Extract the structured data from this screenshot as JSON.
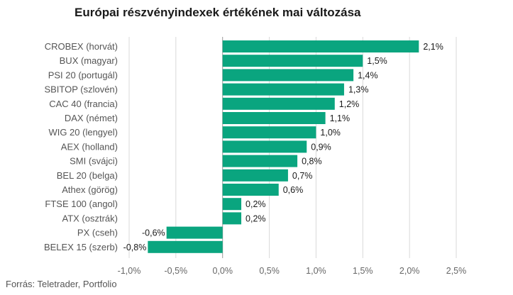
{
  "title": "Európai részvényindexek értékének mai változása",
  "source": "Forrás: Teletrader, Portfolio",
  "chart_data": {
    "type": "bar",
    "orientation": "horizontal",
    "title": "Európai részvényindexek értékének mai változása",
    "categories": [
      "CROBEX (horvát)",
      "BUX (magyar)",
      "PSI 20 (portugál)",
      "SBITOP (szlovén)",
      "CAC 40 (francia)",
      "DAX (német)",
      "WIG 20 (lengyel)",
      "AEX (holland)",
      "SMI (svájci)",
      "BEL 20 (belga)",
      "Athex (görög)",
      "FTSE 100 (angol)",
      "ATX (osztrák)",
      "PX (cseh)",
      "BELEX 15 (szerb)"
    ],
    "values": [
      2.1,
      1.5,
      1.4,
      1.3,
      1.2,
      1.1,
      1.0,
      0.9,
      0.8,
      0.7,
      0.6,
      0.2,
      0.2,
      -0.6,
      -0.8
    ],
    "value_labels": [
      "2,1%",
      "1,5%",
      "1,4%",
      "1,3%",
      "1,2%",
      "1,1%",
      "1,0%",
      "0,9%",
      "0,8%",
      "0,7%",
      "0,6%",
      "0,2%",
      "0,2%",
      "-0,6%",
      "-0,8%"
    ],
    "xlim": [
      -1.0,
      2.5
    ],
    "x_ticks": [
      -1.0,
      -0.5,
      0.0,
      0.5,
      1.0,
      1.5,
      2.0,
      2.5
    ],
    "x_tick_labels": [
      "-1,0%",
      "-0,5%",
      "0,0%",
      "0,5%",
      "1,0%",
      "1,5%",
      "2,0%",
      "2,5%"
    ],
    "grid": "vertical",
    "bar_color": "#0aa57f",
    "grid_color": "#d9d9d9",
    "zero_line_color": "#999999"
  }
}
